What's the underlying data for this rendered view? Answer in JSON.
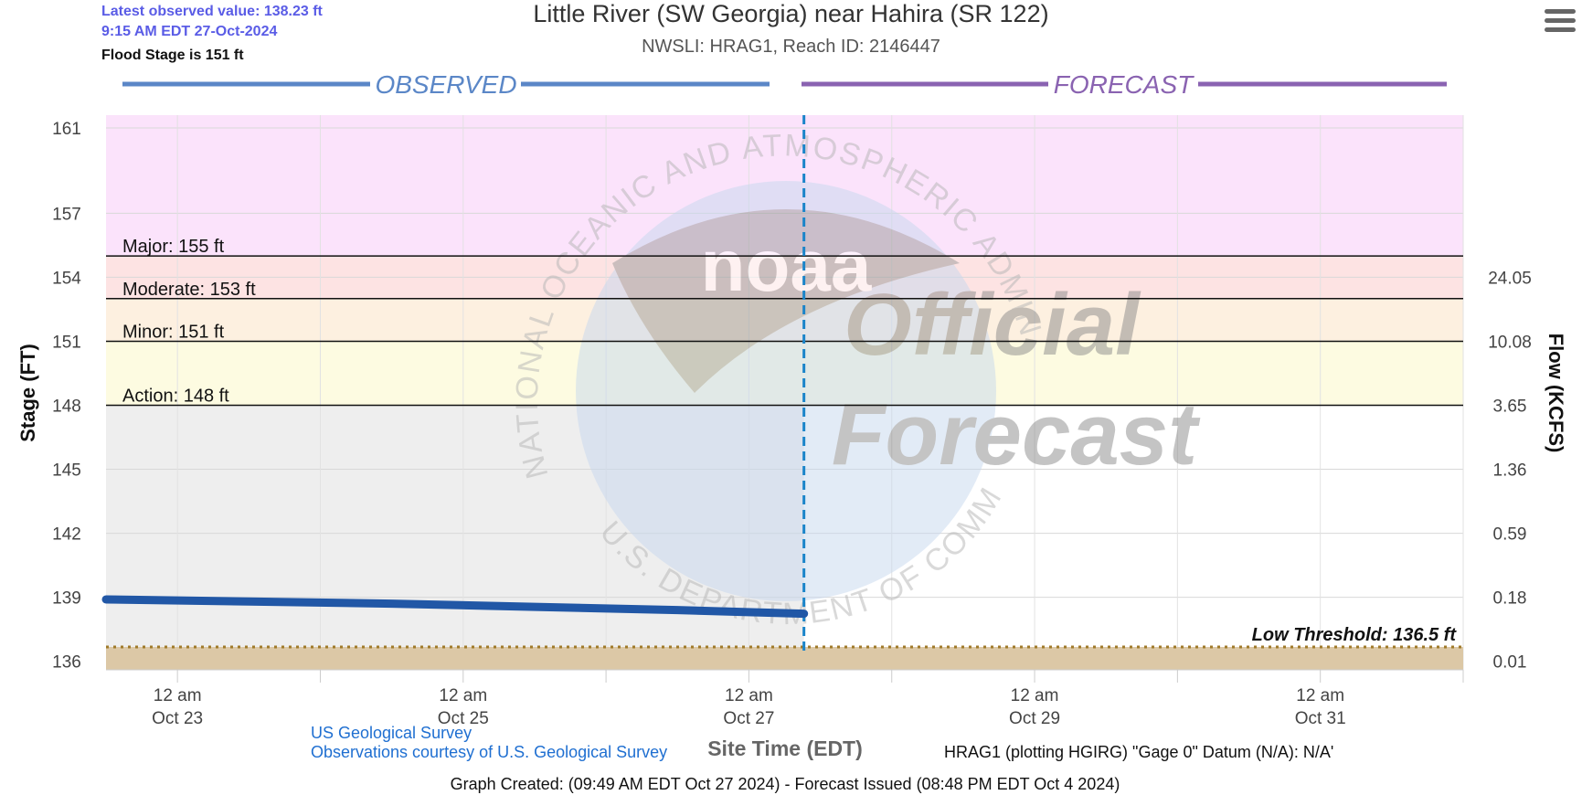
{
  "header": {
    "latest_value": "Latest observed value: 138.23 ft",
    "latest_time": "9:15 AM EDT 27-Oct-2024",
    "flood_stage": "Flood Stage is 151 ft",
    "title": "Little River (SW Georgia) near Hahira (SR 122)",
    "subtitle": "NWSLI: HRAG1, Reach ID: 2146447",
    "menu_icon": "hamburger-menu-icon"
  },
  "chart_data": {
    "type": "line",
    "observed_label": "OBSERVED",
    "forecast_label": "FORECAST",
    "ylabel": "Stage (FT)",
    "y2label": "Flow (KCFS)",
    "xlabel": "Site Time (EDT)",
    "ylim": [
      135.6,
      161.6
    ],
    "y_ticks": [
      {
        "value": 161,
        "label": "161"
      },
      {
        "value": 157,
        "label": "157"
      },
      {
        "value": 154,
        "label": "154"
      },
      {
        "value": 151,
        "label": "151"
      },
      {
        "value": 148,
        "label": "148"
      },
      {
        "value": 145,
        "label": "145"
      },
      {
        "value": 142,
        "label": "142"
      },
      {
        "value": 139,
        "label": "139"
      },
      {
        "value": 136,
        "label": "136"
      }
    ],
    "flow_ticks": [
      {
        "stage": 154,
        "label": "24.05"
      },
      {
        "stage": 151,
        "label": "10.08"
      },
      {
        "stage": 148,
        "label": "3.65"
      },
      {
        "stage": 145,
        "label": "1.36"
      },
      {
        "stage": 142,
        "label": "0.59"
      },
      {
        "stage": 139,
        "label": "0.18"
      },
      {
        "stage": 136,
        "label": "0.01"
      }
    ],
    "x_start": "2024-10-22T12:00",
    "x_end": "2024-11-01T00:00",
    "site_time": "2024-10-27T09:15",
    "x_ticks": [
      {
        "date": "2024-10-23T00:00",
        "line1": "12 am",
        "line2": "Oct 23"
      },
      {
        "date": "2024-10-25T00:00",
        "line1": "12 am",
        "line2": "Oct 25"
      },
      {
        "date": "2024-10-27T00:00",
        "line1": "12 am",
        "line2": "Oct 27"
      },
      {
        "date": "2024-10-29T00:00",
        "line1": "12 am",
        "line2": "Oct 29"
      },
      {
        "date": "2024-10-31T00:00",
        "line1": "12 am",
        "line2": "Oct 31"
      }
    ],
    "flood_categories": [
      {
        "name": "Major",
        "label": "Major: 155 ft",
        "stage": 155,
        "color": "#fbe3fb"
      },
      {
        "name": "Moderate",
        "label": "Moderate: 153 ft",
        "stage": 153,
        "color": "#fde3e3"
      },
      {
        "name": "Minor",
        "label": "Minor: 151 ft",
        "stage": 151,
        "color": "#fdf0e0"
      },
      {
        "name": "Action",
        "label": "Action: 148 ft",
        "stage": 148,
        "color": "#fdfbe1"
      }
    ],
    "normal_color": "#eeeeee",
    "low_threshold": {
      "label": "Low Threshold: 136.5 ft",
      "stage": 136.5,
      "color": "#a07a2a",
      "fill": "#dcc8a6"
    },
    "observed": {
      "color": "#2157a6",
      "x": [
        "2024-10-22T12:00",
        "2024-10-23T12:00",
        "2024-10-24T12:00",
        "2024-10-25T12:00",
        "2024-10-26T12:00",
        "2024-10-27T09:15"
      ],
      "y": [
        138.9,
        138.8,
        138.7,
        138.55,
        138.4,
        138.23
      ]
    },
    "observed_color": "#5b87c7",
    "forecast_color": "#8a63b1",
    "site_time_color": "#1a84c9",
    "watermark": {
      "seal_text": "NATIONAL OCEANIC AND ATMOSPHERIC ADMINISTRATION",
      "seal_text_bottom": "U.S. DEPARTMENT OF COMMERCE",
      "logo": "noaa",
      "line1": "Official",
      "line2": "Forecast"
    }
  },
  "footer": {
    "usgs_link": "US Geological Survey",
    "usgs_courtesy": "Observations courtesy of U.S. Geological Survey",
    "datum": "HRAG1 (plotting HGIRG) \"Gage 0\" Datum (N/A): N/A'",
    "graph_created": "Graph Created: (09:49 AM EDT Oct 27 2024) - Forecast Issued (08:48 PM EDT Oct 4 2024)"
  }
}
